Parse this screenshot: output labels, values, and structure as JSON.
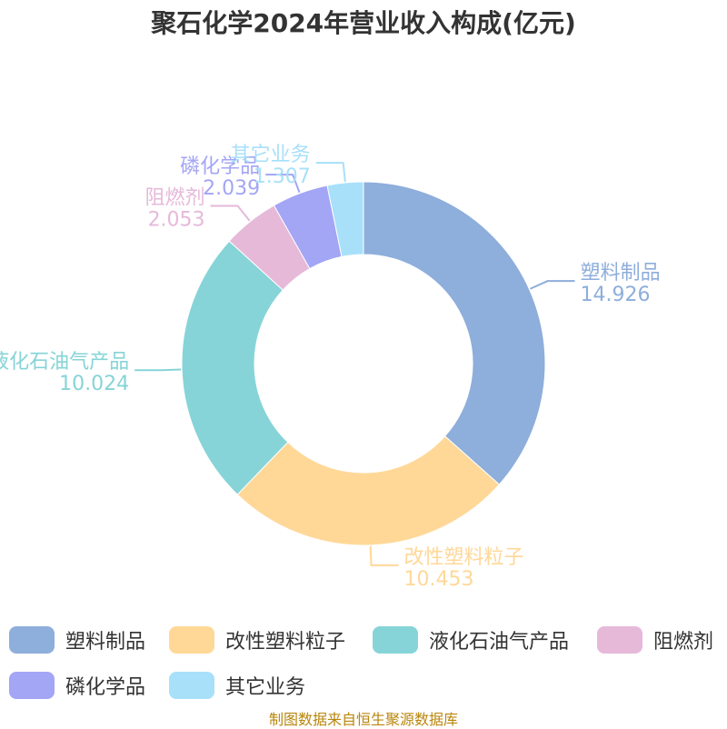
{
  "title": "聚石化学2024年营业收入构成(亿元)",
  "source": "制图数据来自恒生聚源数据库",
  "chart_data": {
    "type": "pie",
    "variant": "donut",
    "title": "聚石化学2024年营业收入构成(亿元)",
    "legend_position": "bottom",
    "slices": [
      {
        "label": "塑料制品",
        "value": 14.926,
        "value_text": "14.926",
        "color": "#8eaedb"
      },
      {
        "label": "改性塑料粒子",
        "value": 10.453,
        "value_text": "10.453",
        "color": "#ffd898"
      },
      {
        "label": "液化石油气产品",
        "value": 10.024,
        "value_text": "10.024",
        "color": "#86d4d7"
      },
      {
        "label": "阻燃剂",
        "value": 2.053,
        "value_text": "2.053",
        "color": "#e6b9d9"
      },
      {
        "label": "磷化学品",
        "value": 2.039,
        "value_text": "2.039",
        "color": "#a3a5f5"
      },
      {
        "label": "其它业务",
        "value": 1.307,
        "value_text": "1.307",
        "color": "#a8e0fa"
      }
    ]
  }
}
